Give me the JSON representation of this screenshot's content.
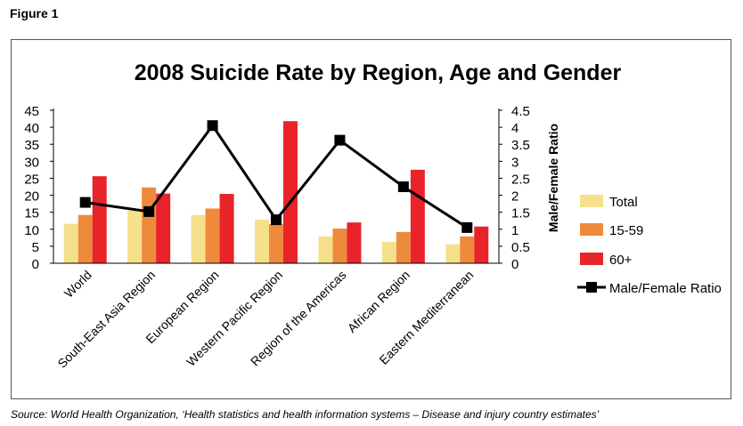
{
  "figure_label": "Figure 1",
  "source_note": "Source: World Health Organization, ‘Health statistics and health information systems – Disease and injury country estimates’",
  "chart_data": {
    "type": "bar",
    "title": "2008 Suicide Rate by Region, Age and Gender",
    "categories": [
      "World",
      "South-East Asia Region",
      "European Region",
      "Western Pacific Region",
      "Region of the Americas",
      "African Region",
      "Eastern Mediterranean"
    ],
    "series": [
      {
        "name": "Total",
        "axis": "left",
        "color": "#f5e08c",
        "values": [
          11.6,
          15.5,
          14.2,
          12.8,
          7.9,
          6.3,
          5.6
        ]
      },
      {
        "name": "15-59",
        "axis": "left",
        "color": "#ee8a3c",
        "values": [
          14.2,
          22.3,
          16.1,
          11.5,
          10.2,
          9.2,
          7.9
        ]
      },
      {
        "name": "60+",
        "axis": "left",
        "color": "#e8232a",
        "values": [
          25.6,
          20.5,
          20.4,
          41.8,
          12.0,
          27.5,
          10.8
        ]
      }
    ],
    "line_series": {
      "name": "Male/Female Ratio",
      "axis": "right",
      "color": "#000000",
      "values": [
        1.79,
        1.52,
        4.05,
        1.28,
        3.62,
        2.25,
        1.05
      ]
    },
    "y_left": {
      "ylim": [
        0,
        45
      ],
      "ticks": [
        "0",
        "5",
        "10",
        "15",
        "20",
        "25",
        "30",
        "35",
        "40",
        "45"
      ]
    },
    "y_right": {
      "ylim": [
        0,
        4.5
      ],
      "label": "Male/Female Ratio",
      "ticks": [
        "0",
        "0.5",
        "1",
        "1.5",
        "2",
        "2.5",
        "3",
        "3.5",
        "4",
        "4.5"
      ]
    },
    "legend_position": "right",
    "grid": false
  }
}
